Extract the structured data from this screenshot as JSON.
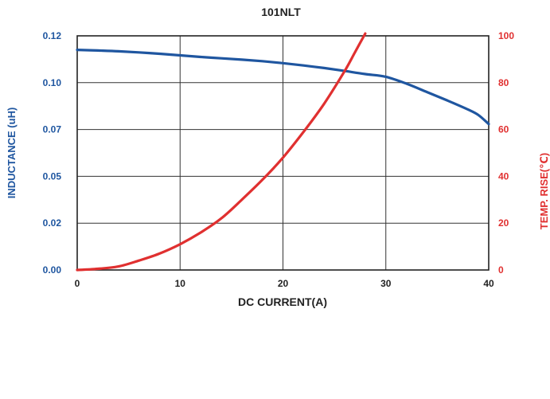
{
  "chart_data": {
    "type": "line",
    "title": "101NLT",
    "xlabel": "DC CURRENT(A)",
    "ylabel_left": "INDUCTANCE (uH)",
    "ylabel_right": "TEMP. RISE(℃)",
    "xlim": [
      0,
      40
    ],
    "ylim_left": [
      0,
      0.12
    ],
    "ylim_right": [
      0,
      100
    ],
    "x_ticks": [
      "0",
      "10",
      "20",
      "30",
      "40"
    ],
    "y_ticks_left": [
      "0.00",
      "0.02",
      "0.05",
      "0.07",
      "0.10",
      "0.12"
    ],
    "y_ticks_right": [
      "0",
      "20",
      "40",
      "60",
      "80",
      "100"
    ],
    "grid": true,
    "series": [
      {
        "axis": "left",
        "color": "#1f56a0",
        "x": [
          0,
          2,
          4,
          6,
          8,
          10,
          12,
          14,
          16,
          18,
          20,
          22,
          24,
          26,
          28,
          30,
          32,
          34,
          36,
          38,
          39,
          40
        ],
        "y": [
          0.1128,
          0.1125,
          0.1121,
          0.1115,
          0.1108,
          0.11,
          0.1092,
          0.1085,
          0.1078,
          0.107,
          0.106,
          0.1048,
          0.1035,
          0.102,
          0.1004,
          0.099,
          0.0955,
          0.0912,
          0.0868,
          0.0822,
          0.0794,
          0.0748
        ]
      },
      {
        "axis": "right",
        "color": "#e03030",
        "x": [
          0,
          2,
          4,
          6,
          8,
          10,
          12,
          14,
          16,
          18,
          20,
          22,
          24,
          26,
          27,
          28
        ],
        "y": [
          0,
          0.5,
          1.5,
          4,
          7,
          11,
          16,
          22,
          30,
          38.5,
          48,
          59,
          71,
          85,
          93,
          101
        ]
      }
    ]
  }
}
